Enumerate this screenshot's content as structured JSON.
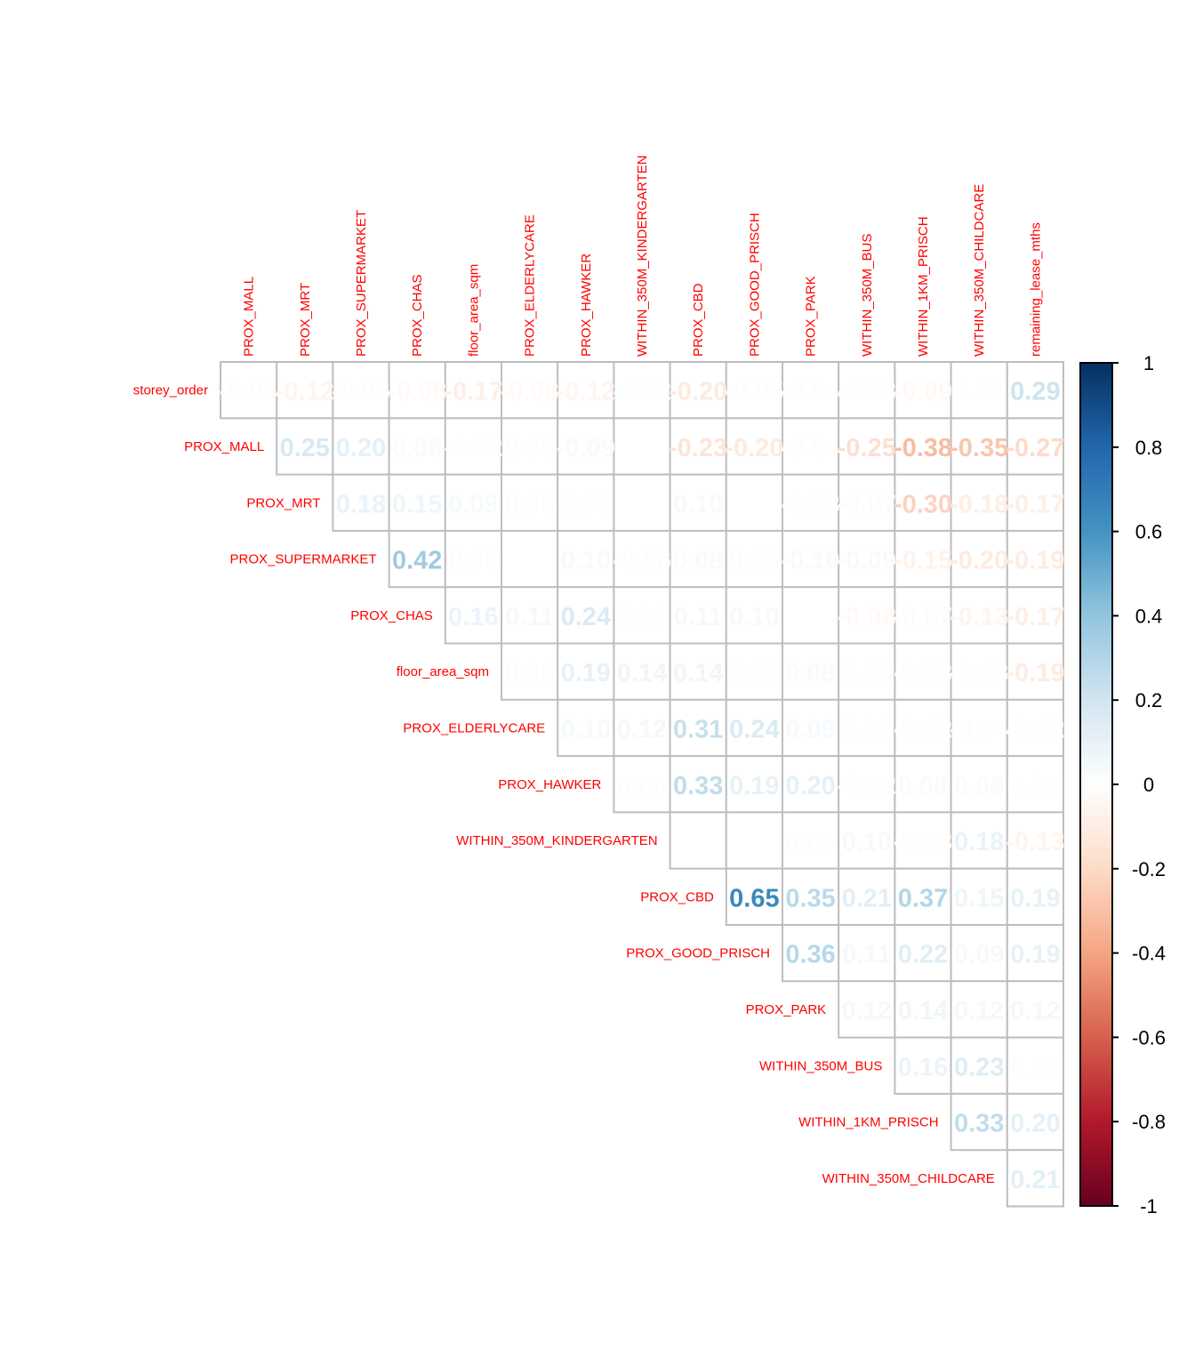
{
  "chart_data": {
    "type": "heatmap",
    "subtype": "correlation-matrix-upper-triangle",
    "title": "",
    "row_labels": [
      "storey_order",
      "PROX_MALL",
      "PROX_MRT",
      "PROX_SUPERMARKET",
      "PROX_CHAS",
      "floor_area_sqm",
      "PROX_ELDERLYCARE",
      "PROX_HAWKER",
      "WITHIN_350M_KINDERGARTEN",
      "PROX_CBD",
      "PROX_GOOD_PRISCH",
      "PROX_PARK",
      "WITHIN_350M_BUS",
      "WITHIN_1KM_PRISCH",
      "WITHIN_350M_CHILDCARE"
    ],
    "col_labels": [
      "PROX_MALL",
      "PROX_MRT",
      "PROX_SUPERMARKET",
      "PROX_CHAS",
      "floor_area_sqm",
      "PROX_ELDERLYCARE",
      "PROX_HAWKER",
      "WITHIN_350M_KINDERGARTEN",
      "PROX_CBD",
      "PROX_GOOD_PRISCH",
      "PROX_PARK",
      "WITHIN_350M_BUS",
      "WITHIN_1KM_PRISCH",
      "WITHIN_350M_CHILDCARE",
      "remaining_lease_mths"
    ],
    "values": [
      [
        -0.04,
        -0.12,
        -0.06,
        -0.08,
        -0.17,
        -0.08,
        -0.12,
        -0.02,
        -0.2,
        -0.05,
        -0.04,
        -0.03,
        -0.09,
        0.02,
        0.29
      ],
      [
        null,
        0.25,
        0.2,
        0.08,
        -0.02,
        0.06,
        -0.09,
        0.01,
        -0.23,
        -0.2,
        -0.04,
        -0.25,
        -0.38,
        -0.35,
        -0.27
      ],
      [
        null,
        null,
        0.18,
        0.15,
        0.09,
        0.06,
        0.04,
        0.01,
        0.1,
        0.01,
        -0.03,
        -0.07,
        -0.3,
        -0.18,
        -0.17
      ],
      [
        null,
        null,
        null,
        0.42,
        0.06,
        0.0,
        0.1,
        -0.06,
        0.08,
        0.06,
        -0.1,
        -0.09,
        -0.15,
        -0.2,
        -0.19
      ],
      [
        null,
        null,
        null,
        null,
        0.16,
        0.11,
        0.24,
        0.02,
        0.11,
        0.1,
        0.01,
        -0.08,
        -0.07,
        -0.13,
        -0.17
      ],
      [
        null,
        null,
        null,
        null,
        null,
        0.06,
        0.19,
        0.14,
        0.14,
        0.02,
        0.08,
        0.05,
        -0.03,
        -0.03,
        -0.19
      ],
      [
        null,
        null,
        null,
        null,
        null,
        null,
        0.1,
        0.12,
        0.31,
        0.24,
        0.09,
        0.02,
        -0.02,
        -0.04,
        -0.02
      ],
      [
        null,
        null,
        null,
        null,
        null,
        null,
        null,
        0.06,
        0.33,
        0.19,
        0.2,
        -0.02,
        0.08,
        0.08,
        0.04
      ],
      [
        null,
        null,
        null,
        null,
        null,
        null,
        null,
        null,
        0.01,
        0.0,
        0.05,
        0.1,
        -0.03,
        0.18,
        -0.13
      ],
      [
        null,
        null,
        null,
        null,
        null,
        null,
        null,
        null,
        null,
        0.65,
        0.35,
        0.21,
        0.37,
        0.15,
        0.19
      ],
      [
        null,
        null,
        null,
        null,
        null,
        null,
        null,
        null,
        null,
        null,
        0.36,
        0.11,
        0.22,
        0.09,
        0.19
      ],
      [
        null,
        null,
        null,
        null,
        null,
        null,
        null,
        null,
        null,
        null,
        null,
        0.12,
        0.14,
        0.12,
        0.12
      ],
      [
        null,
        null,
        null,
        null,
        null,
        null,
        null,
        null,
        null,
        null,
        null,
        null,
        0.16,
        0.23,
        0.06
      ],
      [
        null,
        null,
        null,
        null,
        null,
        null,
        null,
        null,
        null,
        null,
        null,
        null,
        null,
        0.33,
        0.2
      ],
      [
        null,
        null,
        null,
        null,
        null,
        null,
        null,
        null,
        null,
        null,
        null,
        null,
        null,
        null,
        0.21
      ]
    ],
    "colorbar": {
      "range": [
        -1,
        1
      ],
      "ticks": [
        "1",
        "0.8",
        "0.6",
        "0.4",
        "0.2",
        "0",
        "-0.2",
        "-0.4",
        "-0.6",
        "-0.8",
        "-1"
      ],
      "tick_values": [
        1,
        0.8,
        0.6,
        0.4,
        0.2,
        0,
        -0.2,
        -0.4,
        -0.6,
        -0.8,
        -1
      ],
      "palette": [
        "#67001F",
        "#B2182B",
        "#D6604D",
        "#F4A582",
        "#FDDBC7",
        "#FFFFFF",
        "#D1E5F0",
        "#92C5DE",
        "#4393C3",
        "#2166AC",
        "#053061"
      ],
      "legend_position": "right"
    },
    "label_color": "#FF0000",
    "grid_color": "#BEBEBE"
  }
}
